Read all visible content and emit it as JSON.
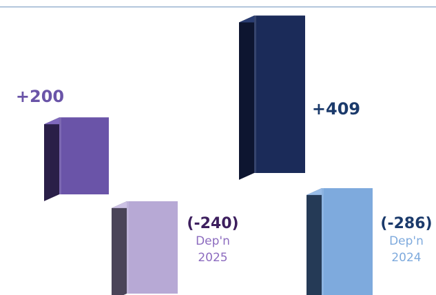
{
  "chart_data": {
    "type": "bar",
    "subtype": "3d-floating-waterfall",
    "title": "",
    "xlabel": "",
    "ylabel": "",
    "grid": false,
    "bars": [
      {
        "group": "2025",
        "label": "+200",
        "value": 200,
        "start": 0,
        "end": 200,
        "color": "#6a54a8",
        "side_color": "#2a1f48",
        "top_color": "#7f69bd",
        "label_color": "#6a54a8"
      },
      {
        "group": "2025",
        "label": "(-240)",
        "caption": [
          "Dep'n",
          "2025"
        ],
        "value": -240,
        "start": 0,
        "end": -240,
        "color": "#b7a9d5",
        "side_color": "#4a4458",
        "top_color": "#ccc1e4",
        "label_color": "#3d1f5e",
        "caption_color": "#8c6bbf"
      },
      {
        "group": "2024",
        "label": "+409",
        "value": 409,
        "start": 0,
        "end": 409,
        "color": "#1b2b59",
        "side_color": "#0d1530",
        "top_color": "#2a3d72",
        "label_color": "#1b3a6b"
      },
      {
        "group": "2024",
        "label": "(-286)",
        "caption": [
          "Dep'n",
          "2024"
        ],
        "value": -286,
        "start": 0,
        "end": -286,
        "color": "#7eaadd",
        "side_color": "#253a56",
        "top_color": "#99bde8",
        "label_color": "#1b3a6b",
        "caption_color": "#7eaadd"
      }
    ],
    "top_rule_color": "#b3c6dc"
  }
}
